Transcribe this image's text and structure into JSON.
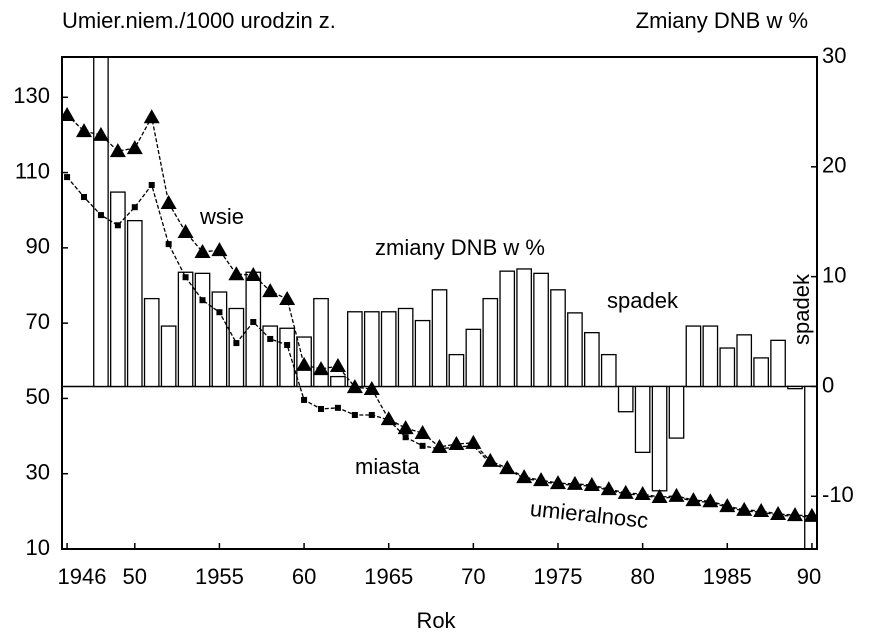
{
  "chart_data": {
    "type": "bar-line",
    "title_left": "Umier.niem./1000 urodzin z.",
    "title_right": "Zmiany DNB w %",
    "xlabel": "Rok",
    "xlim": [
      1945.7,
      1990.3
    ],
    "xticks": [
      1946,
      {
        "value": 1950,
        "label": "50"
      },
      1955,
      {
        "value": 1960,
        "label": "60"
      },
      1965,
      {
        "value": 1970,
        "label": "70"
      },
      1975,
      {
        "value": 1980,
        "label": "80"
      },
      1985,
      {
        "value": 1990,
        "label": "90"
      }
    ],
    "ylim": [
      10,
      140.7
    ],
    "yticks": [
      130,
      110,
      90,
      70,
      50,
      30,
      10
    ],
    "y2lim": [
      -14.8,
      30
    ],
    "y2ticks": [
      30,
      20,
      10,
      0,
      -10
    ],
    "series": [
      {
        "name": "zmiany DNB w %",
        "kind": "bar",
        "axis": "y2",
        "color": "#ffffff",
        "x": [
          1948,
          1949,
          1950,
          1951,
          1952,
          1953,
          1954,
          1955,
          1956,
          1957,
          1958,
          1959,
          1960,
          1961,
          1962,
          1963,
          1964,
          1965,
          1966,
          1967,
          1968,
          1969,
          1970,
          1971,
          1972,
          1973,
          1974,
          1975,
          1976,
          1977,
          1978,
          1979,
          1980,
          1981,
          1982,
          1983,
          1984,
          1985,
          1986,
          1987,
          1988,
          1989,
          1990
        ],
        "values": [
          30,
          17.7,
          15.1,
          8,
          5.5,
          10.4,
          10.3,
          8.6,
          7.1,
          10.4,
          5.5,
          5.3,
          4.5,
          8,
          0.9,
          6.8,
          6.8,
          6.8,
          7.1,
          6,
          8.8,
          2.9,
          5.2,
          8,
          10.5,
          10.7,
          10.3,
          8.8,
          6.7,
          4.9,
          2.9,
          -2.3,
          -6,
          -9.5,
          -4.7,
          5.5,
          5.5,
          3.5,
          4.7,
          2.6,
          4.2,
          -0.2,
          -14.8
        ]
      },
      {
        "name": "wsie",
        "kind": "line",
        "marker": "triangle",
        "color": "#000000",
        "x": [
          1946,
          1947,
          1948,
          1949,
          1950,
          1951,
          1952,
          1953,
          1954,
          1955,
          1956,
          1957,
          1958,
          1959,
          1960,
          1961,
          1962,
          1963,
          1964,
          1965,
          1966,
          1967,
          1968,
          1969,
          1970,
          1971,
          1972,
          1973,
          1974,
          1975,
          1976,
          1977,
          1978,
          1979,
          1980,
          1981,
          1982,
          1983,
          1984,
          1985,
          1986,
          1987,
          1988,
          1989,
          1990
        ],
        "values": [
          125.3,
          121,
          120,
          115.7,
          116.5,
          124.7,
          101.9,
          94.2,
          88.9,
          89.4,
          83,
          82.8,
          78.5,
          76.4,
          58.9,
          57.8,
          58.6,
          53,
          52.5,
          44.5,
          42.1,
          40.8,
          37.1,
          37.9,
          38.2,
          33.4,
          31.5,
          29.1,
          28.3,
          27.5,
          27.3,
          27,
          25.9,
          24.9,
          24.6,
          23.8,
          24.1,
          23,
          22.7,
          21.4,
          20.4,
          20.1,
          19.3,
          19,
          18.8
        ]
      },
      {
        "name": "miasta",
        "kind": "line",
        "marker": "square",
        "color": "#000000",
        "x": [
          1946,
          1947,
          1948,
          1949,
          1950,
          1951,
          1952,
          1953,
          1954,
          1955,
          1956,
          1957,
          1958,
          1959,
          1960,
          1961,
          1962,
          1963,
          1964,
          1965,
          1966,
          1967,
          1968,
          1969,
          1970,
          1971,
          1972,
          1973,
          1974,
          1975,
          1976,
          1977,
          1978,
          1979,
          1980,
          1981,
          1982,
          1983,
          1984,
          1985,
          1986,
          1987,
          1988,
          1989,
          1990
        ],
        "values": [
          108.8,
          103.5,
          98.7,
          96,
          100.8,
          106.7,
          91,
          82.2,
          76.1,
          72.9,
          64.7,
          70.3,
          65.8,
          64.2,
          49.6,
          47.2,
          47.5,
          45.6,
          45.6,
          44.3,
          39.7,
          37.4,
          36.6,
          37.1,
          37.4,
          32.8,
          31.2,
          28.8,
          28,
          27.2,
          27,
          26.7,
          25.6,
          24.6,
          24.3,
          23.5,
          23.8,
          22.7,
          22.4,
          21.1,
          20.1,
          19.8,
          19,
          18.7,
          18.5
        ]
      }
    ],
    "annotations": [
      "spadek",
      "spadek",
      "umieralnosc"
    ]
  }
}
